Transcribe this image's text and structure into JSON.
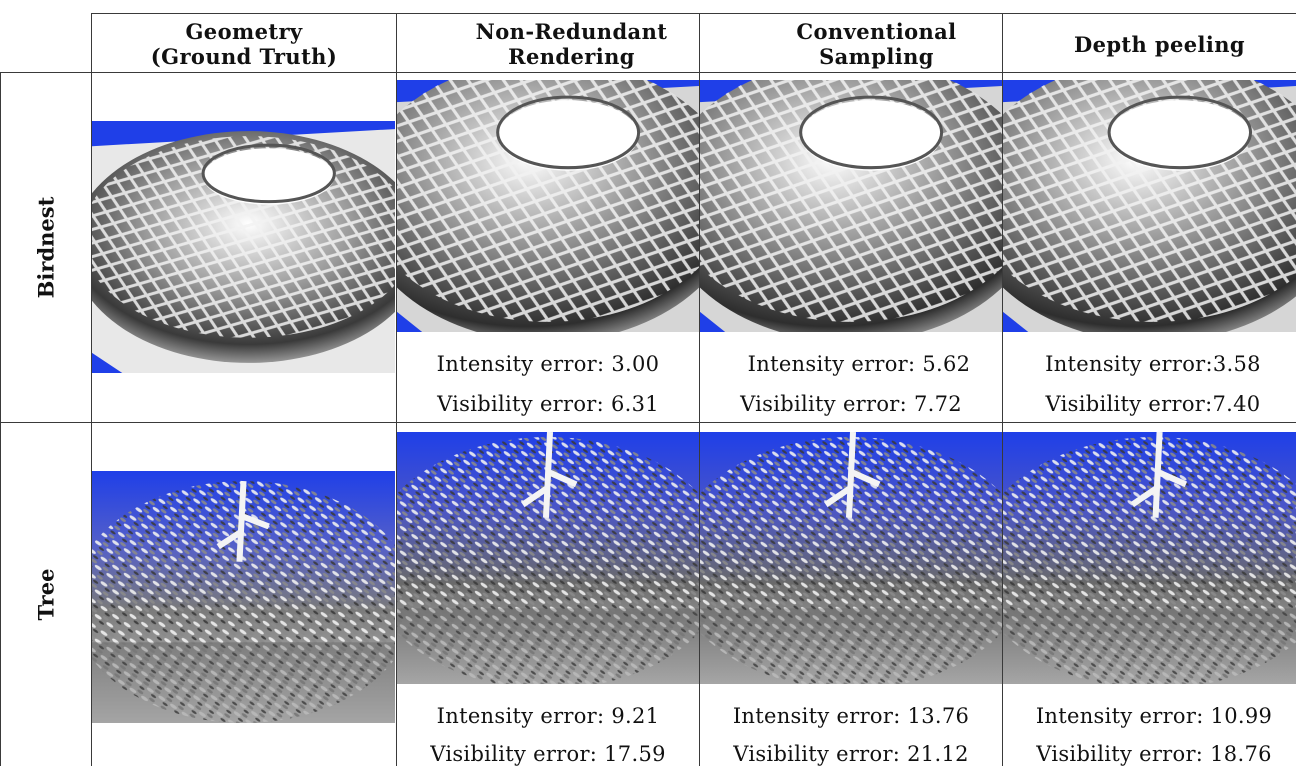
{
  "table": {
    "columns": [
      {
        "line1": "Geometry",
        "line2": "(Ground Truth)"
      },
      {
        "line1": "Non-Redundant",
        "line2": "Rendering"
      },
      {
        "line1": "Conventional",
        "line2": "Sampling"
      },
      {
        "line1": "Depth peeling",
        "line2": ""
      }
    ],
    "rows": [
      {
        "label": "Birdnest",
        "metrics": [
          {
            "intensity": "Intensity error: 3.00",
            "visibility": "Visibility error: 6.31"
          },
          {
            "intensity": "Intensity error: 5.62",
            "visibility": "Visibility error: 7.72"
          },
          {
            "intensity": "Intensity error:3.58",
            "visibility": "Visibility error:7.40"
          }
        ]
      },
      {
        "label": "Tree",
        "metrics": [
          {
            "intensity": "Intensity error: 9.21",
            "visibility": "Visibility error: 17.59"
          },
          {
            "intensity": "Intensity error: 13.76",
            "visibility": "Visibility error: 21.12"
          },
          {
            "intensity": "Intensity error: 10.99",
            "visibility": "Visibility error: 18.76"
          }
        ]
      }
    ]
  },
  "colors": {
    "background": "#ffffff",
    "grid_line": "#3a3a3a",
    "sky_blue": "#1f3fe8"
  }
}
